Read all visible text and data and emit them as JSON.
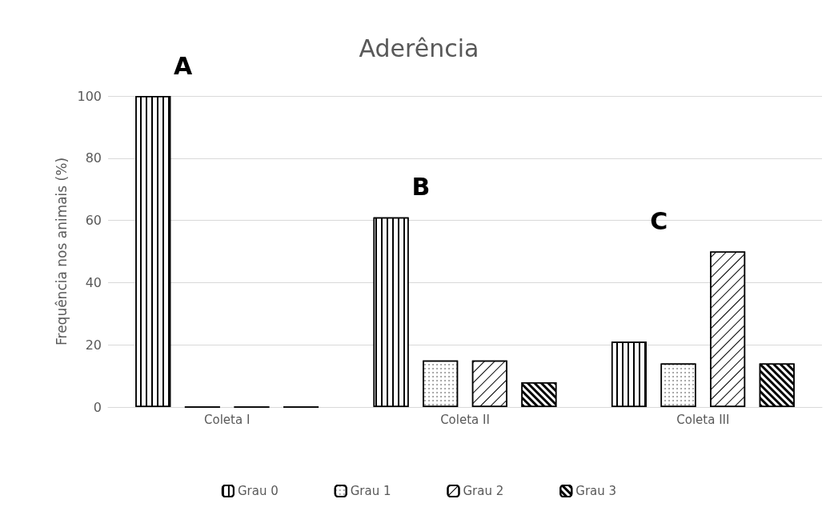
{
  "chart_data": {
    "type": "bar",
    "title": "Aderência",
    "ylabel": "Frequência nos animais (%)",
    "categories": [
      "Coleta I",
      "Coleta II",
      "Coleta III"
    ],
    "series": [
      {
        "name": "Grau 0",
        "color": "#ffffff",
        "values": [
          100,
          61,
          21
        ]
      },
      {
        "name": "Grau 1",
        "color": "#ffffff",
        "values": [
          0,
          15,
          14
        ]
      },
      {
        "name": "Grau 2",
        "color": "#ffffff",
        "values": [
          0,
          15,
          50
        ]
      },
      {
        "name": "Grau 3",
        "color": "#ffffff",
        "values": [
          0,
          8,
          14
        ]
      }
    ],
    "ylim": [
      0,
      100
    ],
    "yticks": [
      0,
      20,
      40,
      60,
      80,
      100
    ],
    "grid": "y",
    "legend": "bottom",
    "annotations": [
      "A",
      "B",
      "C"
    ]
  }
}
